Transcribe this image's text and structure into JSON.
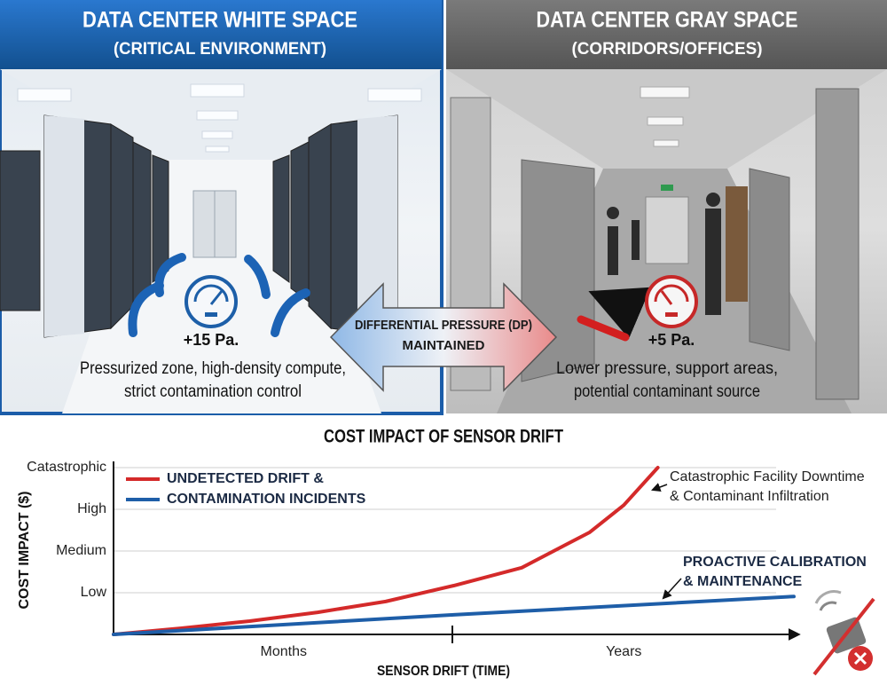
{
  "infographic": {
    "panels": [
      {
        "title": "DATA CENTER WHITE SPACE",
        "subtitle": "(CRITICAL ENVIRONMENT)",
        "pressure": "+15 Pa.",
        "description": [
          "Pressurized zone, high-density compute,",
          "strict contamination control"
        ]
      },
      {
        "title": "DATA CENTER GRAY SPACE",
        "subtitle": "(CORRIDORS/OFFICES)",
        "pressure": "+5 Pa.",
        "description": [
          "Lower pressure, support areas,",
          "potential contaminant source"
        ]
      }
    ],
    "center_arrow": [
      "DIFFERENTIAL PRESSURE (DP)",
      "MAINTAINED"
    ]
  },
  "chart_data": {
    "type": "line",
    "title": "COST IMPACT OF SENSOR DRIFT",
    "x_label": "SENSOR DRIFT (TIME)",
    "y_label": "COST IMPACT ($)",
    "xlim": [
      0,
      10
    ],
    "xticks": [
      {
        "value": 2.5,
        "label": "Months"
      },
      {
        "value": 7.5,
        "label": "Years"
      }
    ],
    "ylim": [
      0,
      4
    ],
    "yticks": [
      {
        "value": 1,
        "label": "Low"
      },
      {
        "value": 2,
        "label": "Medium"
      },
      {
        "value": 3,
        "label": "High"
      },
      {
        "value": 4,
        "label": "Catastrophic"
      }
    ],
    "grid": true,
    "legend": "upper left",
    "series": [
      {
        "name": "UNDETECTED DRIFT &",
        "color": "#d42a2a",
        "x": [
          0,
          1,
          2,
          3,
          4,
          5,
          6,
          7,
          7.5,
          8
        ],
        "values": [
          0,
          0.15,
          0.32,
          0.53,
          0.79,
          1.17,
          1.6,
          2.45,
          3.1,
          4.0
        ]
      },
      {
        "name": "CONTAMINATION INCIDENTS",
        "color": "#1e5ea8",
        "x": [
          0,
          5,
          10
        ],
        "values": [
          0,
          0.47,
          0.91
        ]
      }
    ],
    "annotations": [
      {
        "lines": [
          "Catastrophic Facility Downtime",
          "& Contaminant Infiltration"
        ]
      },
      {
        "lines": [
          "PROACTIVE CALIBRATION",
          "& MAINTENANCE"
        ]
      }
    ]
  }
}
